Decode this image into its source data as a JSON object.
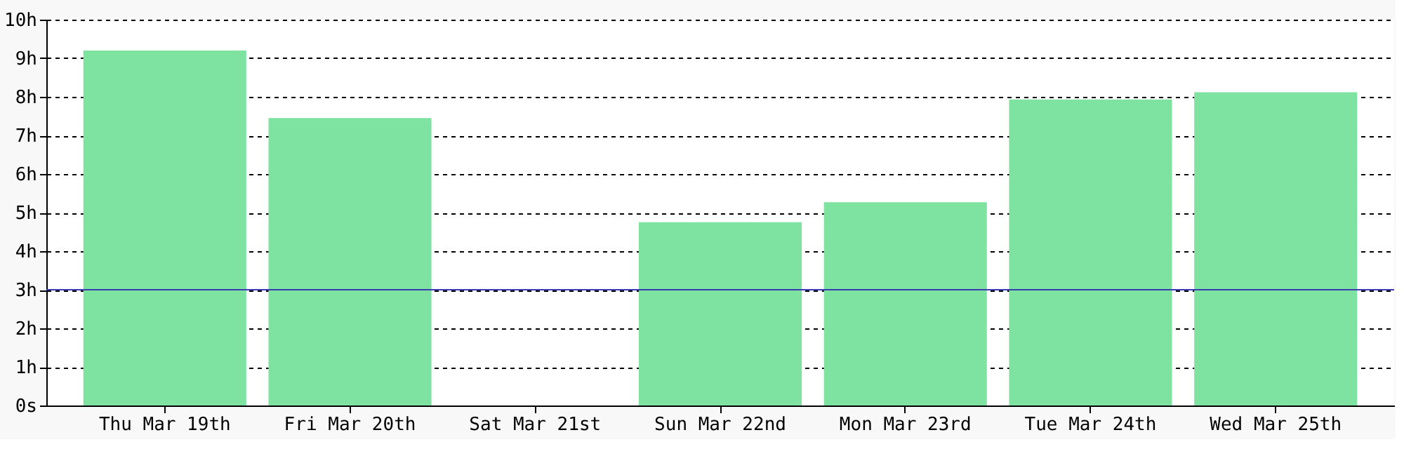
{
  "chart_data": {
    "type": "bar",
    "categories": [
      "Thu Mar 19th",
      "Fri Mar 20th",
      "Sat Mar 21st",
      "Sun Mar 22nd",
      "Mon Mar 23rd",
      "Tue Mar 24th",
      "Wed Mar 25th"
    ],
    "values": [
      9.2,
      7.45,
      0,
      4.75,
      5.27,
      7.93,
      8.12
    ],
    "color": "#7ee2a0",
    "ylim": [
      0,
      10
    ],
    "yticks": [
      {
        "value": 0,
        "label": "0s"
      },
      {
        "value": 1,
        "label": "1h"
      },
      {
        "value": 2,
        "label": "2h"
      },
      {
        "value": 3,
        "label": "3h"
      },
      {
        "value": 4,
        "label": "4h"
      },
      {
        "value": 5,
        "label": "5h"
      },
      {
        "value": 6,
        "label": "6h"
      },
      {
        "value": 7,
        "label": "7h"
      },
      {
        "value": 8,
        "label": "8h"
      },
      {
        "value": 9,
        "label": "9h"
      },
      {
        "value": 10,
        "label": "10h"
      }
    ],
    "ref_lines": [
      {
        "axis": "y",
        "value": 3,
        "color": "#3b3bb3"
      }
    ],
    "grid": "y"
  }
}
